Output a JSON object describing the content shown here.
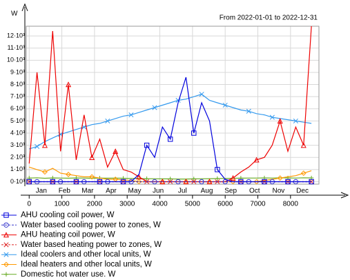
{
  "chart_data": {
    "type": "line",
    "subtitle": "From 2022-01-01 to 2022-12-31",
    "y_label": "W",
    "x": [
      0,
      240,
      480,
      720,
      960,
      1200,
      1440,
      1680,
      1920,
      2160,
      2400,
      2640,
      2880,
      3120,
      3360,
      3600,
      3840,
      4080,
      4320,
      4560,
      4800,
      5040,
      5280,
      5520,
      5760,
      6000,
      6240,
      6480,
      6720,
      6960,
      7200,
      7440,
      7680,
      7920,
      8160,
      8400,
      8640
    ],
    "xlim": [
      -90,
      8870
    ],
    "xticks": [
      0,
      1000,
      2000,
      3000,
      4000,
      5000,
      6000,
      7000,
      8000
    ],
    "month_ticks": [
      {
        "value": 372,
        "label": "Jan"
      },
      {
        "value": 1080,
        "label": "Feb"
      },
      {
        "value": 1788,
        "label": "Mar"
      },
      {
        "value": 2508,
        "label": "Apr"
      },
      {
        "value": 3228,
        "label": "May"
      },
      {
        "value": 3948,
        "label": "Jun"
      },
      {
        "value": 4692,
        "label": "Jul"
      },
      {
        "value": 5436,
        "label": "Aug"
      },
      {
        "value": 6168,
        "label": "Sep"
      },
      {
        "value": 6900,
        "label": "Oct"
      },
      {
        "value": 7632,
        "label": "Nov"
      },
      {
        "value": 8364,
        "label": "Dec"
      }
    ],
    "ylim": [
      -200,
      12800
    ],
    "yticks": [
      {
        "value": 0,
        "label": "0·10³"
      },
      {
        "value": 1000,
        "label": "1·10³"
      },
      {
        "value": 2000,
        "label": "2·10³"
      },
      {
        "value": 3000,
        "label": "3·10³"
      },
      {
        "value": 4000,
        "label": "4·10³"
      },
      {
        "value": 5000,
        "label": "5·10³"
      },
      {
        "value": 6000,
        "label": "6·10³"
      },
      {
        "value": 7000,
        "label": "7·10³"
      },
      {
        "value": 8000,
        "label": "8·10³"
      },
      {
        "value": 9000,
        "label": "9·10³"
      },
      {
        "value": 10000,
        "label": "10·10³"
      },
      {
        "value": 11000,
        "label": "11·10³"
      },
      {
        "value": 12000,
        "label": "12·10³"
      }
    ],
    "grid": true,
    "series": [
      {
        "name": "AHU cooling coil power, W",
        "color": "#0000dd",
        "marker": "square",
        "dash": false,
        "values": [
          0,
          0,
          0,
          0,
          0,
          0,
          0,
          0,
          0,
          0,
          0,
          0,
          0,
          0,
          600,
          3000,
          2000,
          4500,
          3500,
          6500,
          8600,
          4000,
          6500,
          5000,
          1000,
          200,
          0,
          0,
          0,
          0,
          0,
          0,
          0,
          0,
          0,
          0,
          0
        ]
      },
      {
        "name": "Water based cooling power to zones, W",
        "color": "#3333cc",
        "marker": "circle",
        "dash": true,
        "values": [
          0,
          0,
          0,
          0,
          0,
          0,
          0,
          0,
          0,
          0,
          0,
          0,
          0,
          0,
          0,
          0,
          0,
          0,
          0,
          0,
          0,
          0,
          0,
          0,
          0,
          0,
          0,
          0,
          0,
          0,
          0,
          0,
          0,
          0,
          0,
          0,
          0
        ]
      },
      {
        "name": "AHU heating coil power, W",
        "color": "#ee0000",
        "marker": "triangle",
        "dash": false,
        "values": [
          1500,
          9000,
          3000,
          12400,
          2500,
          8000,
          1800,
          5500,
          2000,
          3500,
          1200,
          2500,
          1000,
          800,
          400,
          0,
          0,
          0,
          0,
          0,
          0,
          0,
          0,
          0,
          0,
          0,
          300,
          800,
          1200,
          1800,
          2000,
          3000,
          5000,
          2500,
          4500,
          3000,
          12800
        ]
      },
      {
        "name": "Water based heating power to zones, W",
        "color": "#dd2222",
        "marker": "x",
        "dash": true,
        "values": [
          0,
          0,
          0,
          0,
          0,
          0,
          0,
          0,
          0,
          0,
          0,
          0,
          0,
          0,
          0,
          0,
          0,
          0,
          0,
          0,
          0,
          0,
          0,
          0,
          0,
          0,
          0,
          0,
          0,
          0,
          0,
          0,
          0,
          0,
          0,
          0,
          0
        ]
      },
      {
        "name": "Ideal coolers and other local units, W",
        "color": "#3399ee",
        "marker": "x",
        "dash": false,
        "values": [
          2700,
          2900,
          3300,
          3600,
          3900,
          4100,
          4300,
          4500,
          4700,
          4800,
          5000,
          5200,
          5400,
          5500,
          5700,
          5900,
          6100,
          6300,
          6500,
          6700,
          6800,
          7000,
          7200,
          6700,
          6500,
          6300,
          6100,
          5900,
          5800,
          5600,
          5500,
          5300,
          5200,
          5100,
          5000,
          4900,
          4800
        ]
      },
      {
        "name": "Ideal heaters and other local units, W",
        "color": "#ff9900",
        "marker": "diamond",
        "dash": false,
        "values": [
          1200,
          1000,
          800,
          1100,
          700,
          600,
          500,
          400,
          400,
          300,
          200,
          200,
          150,
          100,
          0,
          0,
          0,
          0,
          0,
          0,
          0,
          0,
          0,
          0,
          0,
          0,
          0,
          0,
          0,
          0,
          100,
          200,
          300,
          400,
          500,
          700,
          900
        ]
      },
      {
        "name": "Domestic hot water use, W",
        "color": "#66aa22",
        "marker": "plus",
        "dash": false,
        "values": [
          300,
          320,
          280,
          310,
          300,
          290,
          310,
          300,
          280,
          300,
          290,
          300,
          280,
          270,
          260,
          250,
          240,
          230,
          230,
          220,
          220,
          230,
          240,
          250,
          260,
          270,
          280,
          290,
          300,
          300,
          310,
          300,
          320,
          310,
          300,
          320,
          310
        ]
      }
    ]
  }
}
